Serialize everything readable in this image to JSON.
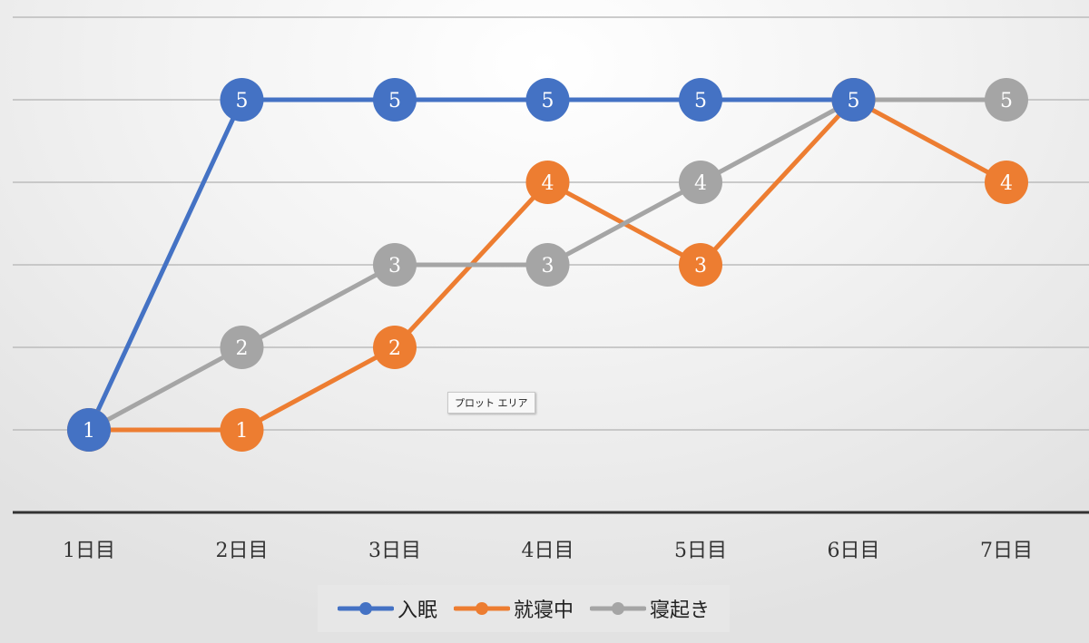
{
  "tooltip": "プロット エリア",
  "chart_data": {
    "type": "line",
    "categories": [
      "1日目",
      "2日目",
      "3日目",
      "4日目",
      "5日目",
      "6日目",
      "7日目"
    ],
    "series": [
      {
        "name": "入眠",
        "color": "#4472C4",
        "values": [
          1,
          5,
          5,
          5,
          5,
          5,
          null
        ]
      },
      {
        "name": "就寝中",
        "color": "#ED7D31",
        "values": [
          1,
          1,
          2,
          4,
          3,
          5,
          4
        ]
      },
      {
        "name": "寝起き",
        "color": "#A5A5A5",
        "values": [
          1,
          2,
          3,
          3,
          4,
          5,
          5
        ]
      }
    ],
    "data_labels": true,
    "ylim": [
      0,
      6
    ],
    "grid": true,
    "legend": "bottom",
    "title": "",
    "xlabel": "",
    "ylabel": ""
  }
}
